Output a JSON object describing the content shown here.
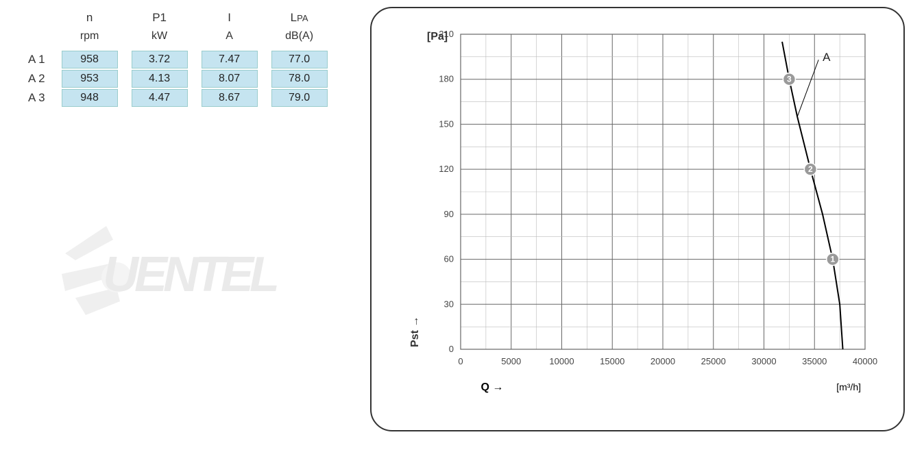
{
  "table": {
    "headers": [
      {
        "symbol": "n",
        "unit": "rpm"
      },
      {
        "symbol": "P1",
        "unit": "kW"
      },
      {
        "symbol": "I",
        "unit": "A"
      },
      {
        "symbol": "LPA",
        "unit": "dB(A)"
      }
    ],
    "rows": [
      {
        "label": "A  1",
        "n": "958",
        "p1": "3.72",
        "i": "7.47",
        "lpa": "77.0"
      },
      {
        "label": "A  2",
        "n": "953",
        "p1": "4.13",
        "i": "8.07",
        "lpa": "78.0"
      },
      {
        "label": "A  3",
        "n": "948",
        "p1": "4.47",
        "i": "8.67",
        "lpa": "79.0"
      }
    ],
    "cell_bg": "#c5e4f0"
  },
  "watermark": {
    "text_main": "UENT",
    "text_accent": "EL"
  },
  "chart": {
    "type": "line",
    "series_label": "A",
    "y_axis_title": "Pst  →",
    "y_unit": "[Pa]",
    "x_axis_title": "Q  →",
    "x_unit": "[m³/h]",
    "xlim": [
      0,
      40000
    ],
    "ylim": [
      0,
      210
    ],
    "xtick_step": 5000,
    "ytick_step": 30,
    "xticks": [
      0,
      5000,
      10000,
      15000,
      20000,
      25000,
      30000,
      35000,
      40000
    ],
    "yticks": [
      0,
      30,
      60,
      90,
      120,
      150,
      180,
      210
    ],
    "grid_color": "#666666",
    "minor_grid_color": "#bbbbbb",
    "background_color": "#ffffff",
    "line_color": "#000000",
    "line_width": 2,
    "curve_points": [
      {
        "x": 31800,
        "y": 205
      },
      {
        "x": 32500,
        "y": 180
      },
      {
        "x": 33300,
        "y": 155
      },
      {
        "x": 34600,
        "y": 120
      },
      {
        "x": 35800,
        "y": 90
      },
      {
        "x": 36800,
        "y": 60
      },
      {
        "x": 37500,
        "y": 30
      },
      {
        "x": 37800,
        "y": 0
      }
    ],
    "markers": [
      {
        "label": "1",
        "x": 36800,
        "y": 60
      },
      {
        "label": "2",
        "x": 34600,
        "y": 120
      },
      {
        "label": "3",
        "x": 32500,
        "y": 180
      }
    ],
    "marker_fill": "#9a9a9a",
    "marker_radius": 9,
    "marker_text_color": "#ffffff",
    "label_line_from": {
      "x": 33300,
      "y": 155
    },
    "label_line_to": {
      "x": 35400,
      "y": 193
    },
    "title_fontsize": 16,
    "tick_fontsize": 13
  }
}
